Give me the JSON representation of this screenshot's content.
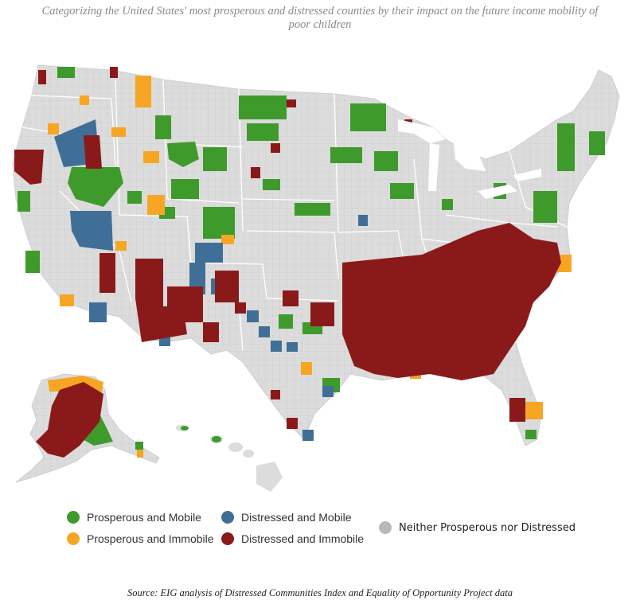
{
  "subtitle": "Categorizing the United States' most prosperous and distressed counties by their impact on the future income mobility of poor children",
  "source": "Source: EIG analysis of Distressed Communities Index and Equality of Opportunity Project data",
  "legend": [
    {
      "key": "pm",
      "label": "Prosperous and Mobile",
      "color": "#3f9a2c"
    },
    {
      "key": "pi",
      "label": "Prosperous and Immobile",
      "color": "#f6a623"
    },
    {
      "key": "dm",
      "label": "Distressed and Mobile",
      "color": "#3f6f96"
    },
    {
      "key": "di",
      "label": "Distressed and Immobile",
      "color": "#8a1a1a"
    },
    {
      "key": "nn",
      "label": "Neither Prosperous nor Distressed",
      "color": "#b8b8b8"
    }
  ],
  "colors": {
    "land": "#dcdcdc",
    "county_border": "#c8c8c8",
    "state_border": "#ffffff",
    "pm": "#3f9a2c",
    "pi": "#f6a623",
    "dm": "#3f6f96",
    "di": "#8a1a1a"
  }
}
